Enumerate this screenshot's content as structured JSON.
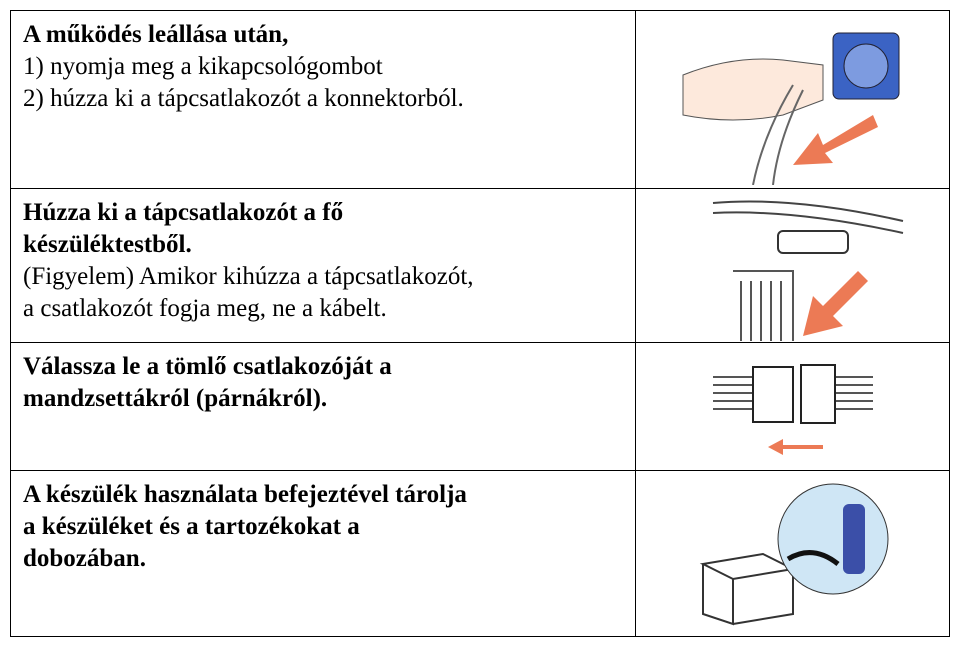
{
  "table": {
    "rows": [
      {
        "bold": [
          "A működés leállása után,"
        ],
        "text": [
          "1) nyomja meg a kikapcsológombot",
          "2) húzza ki a tápcsatlakozót a konnektorból."
        ]
      },
      {
        "bold": [
          "Húzza ki a tápcsatlakozót a fő",
          "készüléktestből."
        ],
        "text": [
          "(Figyelem) Amikor kihúzza a tápcsatlakozót,",
          "a csatlakozót fogja meg, ne a kábelt."
        ]
      },
      {
        "bold": [
          "Válassza le a tömlő csatlakozóját a",
          "mandzsettákról (párnákról)."
        ],
        "text": []
      },
      {
        "bold": [
          "A készülék használata befejeztével tárolja",
          "a készüléket és a tartozékokat a",
          "dobozában."
        ],
        "text": []
      }
    ]
  }
}
